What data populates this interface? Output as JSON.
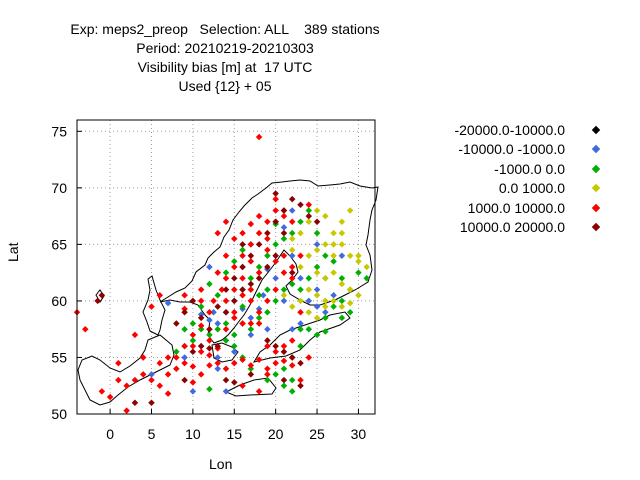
{
  "title_lines": [
    "Exp: meps2_preop   Selection: ALL    389 stations",
    "Period: 20210219-20210303",
    "Visibility bias [m] at  17 UTC",
    "Used {12} + 05"
  ],
  "chart_data": {
    "type": "scatter",
    "xlabel": "Lon",
    "ylabel": "Lat",
    "xlim": [
      -4,
      32
    ],
    "ylim": [
      50,
      76
    ],
    "xticks": [
      0,
      5,
      10,
      15,
      20,
      25,
      30
    ],
    "yticks": [
      50,
      55,
      60,
      65,
      70,
      75
    ],
    "grid": true,
    "legend_position": "right",
    "series": [
      {
        "name": "-20000.0-10000.0",
        "color": "#000000",
        "points": []
      },
      {
        "name": "-10000.0 -1000.0",
        "color": "#4169e1",
        "points": [
          [
            7,
            59.8
          ],
          [
            11,
            58.8
          ],
          [
            12,
            58.3
          ],
          [
            12.5,
            59
          ],
          [
            13,
            58
          ],
          [
            14,
            59
          ],
          [
            15,
            60
          ],
          [
            16,
            59.3
          ],
          [
            17,
            58.5
          ],
          [
            18,
            59.3
          ],
          [
            18.5,
            60.5
          ],
          [
            20,
            62
          ],
          [
            21,
            60
          ],
          [
            22,
            64
          ],
          [
            23,
            62
          ],
          [
            24,
            60
          ],
          [
            25,
            61
          ],
          [
            26,
            62
          ],
          [
            27,
            60.5
          ],
          [
            25,
            59.5
          ],
          [
            23,
            58
          ],
          [
            22,
            57.5
          ],
          [
            19,
            57.5
          ],
          [
            17,
            57
          ],
          [
            15,
            55.5
          ],
          [
            13,
            55
          ],
          [
            11,
            56
          ],
          [
            9,
            55
          ],
          [
            5,
            53.5
          ],
          [
            22,
            68
          ],
          [
            20,
            67
          ],
          [
            25,
            65
          ],
          [
            26,
            59
          ],
          [
            14,
            52
          ],
          [
            10,
            52
          ],
          [
            13,
            54
          ],
          [
            19,
            62.8
          ],
          [
            16,
            63
          ],
          [
            21,
            66.5
          ],
          [
            28,
            64
          ],
          [
            17,
            65
          ],
          [
            12,
            63
          ]
        ]
      },
      {
        "name": "-1000.0 0.0",
        "color": "#00b000",
        "points": [
          [
            9,
            57.5
          ],
          [
            10,
            58
          ],
          [
            11,
            57.5
          ],
          [
            12,
            57
          ],
          [
            13,
            57.5
          ],
          [
            14,
            58
          ],
          [
            15,
            57
          ],
          [
            16,
            58
          ],
          [
            17,
            57.5
          ],
          [
            18,
            58.5
          ],
          [
            19,
            59
          ],
          [
            20,
            60
          ],
          [
            21,
            61
          ],
          [
            22,
            61.5
          ],
          [
            23,
            61
          ],
          [
            24,
            62
          ],
          [
            25,
            63
          ],
          [
            26,
            64
          ],
          [
            27,
            63.5
          ],
          [
            28,
            62
          ],
          [
            29,
            61
          ],
          [
            30,
            62.5
          ],
          [
            31,
            62
          ],
          [
            26,
            58.5
          ],
          [
            27,
            59.5
          ],
          [
            28,
            60
          ],
          [
            29,
            59
          ],
          [
            24,
            57.5
          ],
          [
            25,
            57
          ],
          [
            23,
            56
          ],
          [
            22,
            55
          ],
          [
            21,
            54
          ],
          [
            22,
            53
          ],
          [
            21,
            52.5
          ],
          [
            19,
            53
          ],
          [
            17,
            54
          ],
          [
            16,
            55
          ],
          [
            15,
            56
          ],
          [
            14,
            56.5
          ],
          [
            16,
            61
          ],
          [
            17,
            62
          ],
          [
            18,
            63
          ],
          [
            19,
            64
          ],
          [
            20,
            65
          ],
          [
            21,
            65.5
          ],
          [
            22,
            66
          ],
          [
            23,
            67
          ],
          [
            24,
            68
          ],
          [
            25,
            66
          ],
          [
            20,
            66.8
          ],
          [
            19,
            61
          ],
          [
            18,
            60.5
          ],
          [
            16,
            59.5
          ],
          [
            13,
            60.5
          ],
          [
            12,
            61.5
          ],
          [
            11,
            59.5
          ],
          [
            10,
            56.5
          ],
          [
            9,
            56
          ],
          [
            8,
            55.5
          ],
          [
            15,
            63.5
          ],
          [
            16,
            64.5
          ],
          [
            14,
            62.5
          ],
          [
            12,
            52.2
          ],
          [
            22,
            52
          ],
          [
            20,
            53.5
          ],
          [
            23,
            57.5
          ],
          [
            26,
            57.3
          ],
          [
            28,
            58.5
          ]
        ]
      },
      {
        "name": "0.0 1000.0",
        "color": "#c8c800",
        "points": [
          [
            24,
            64
          ],
          [
            25,
            64.5
          ],
          [
            26,
            65
          ],
          [
            27,
            64
          ],
          [
            28,
            65
          ],
          [
            29,
            64
          ],
          [
            30,
            63.5
          ],
          [
            31,
            63
          ],
          [
            27,
            66
          ],
          [
            28,
            67
          ],
          [
            26,
            67.5
          ],
          [
            25,
            68
          ],
          [
            24,
            67
          ],
          [
            23,
            66
          ],
          [
            22,
            65.5
          ],
          [
            26,
            62
          ],
          [
            27,
            62.5
          ],
          [
            28,
            61.5
          ],
          [
            29,
            61
          ],
          [
            30,
            60.5
          ],
          [
            26,
            60
          ],
          [
            27,
            60
          ],
          [
            28,
            59.5
          ],
          [
            29,
            59.8
          ],
          [
            25,
            60.5
          ],
          [
            24,
            61
          ],
          [
            23,
            60
          ],
          [
            24,
            59
          ],
          [
            25,
            58.5
          ],
          [
            21,
            60.5
          ],
          [
            22,
            59.5
          ],
          [
            29,
            68
          ],
          [
            28,
            66
          ],
          [
            27,
            65
          ],
          [
            30,
            64
          ],
          [
            25,
            62.5
          ],
          [
            23,
            63
          ],
          [
            22,
            64.5
          ],
          [
            26,
            59.5
          ]
        ]
      },
      {
        "name": "1000.0 10000.0",
        "color": "#ff0000",
        "points": [
          [
            -4,
            59
          ],
          [
            -1,
            52
          ],
          [
            0,
            51.5
          ],
          [
            1,
            53
          ],
          [
            2,
            52.5
          ],
          [
            3,
            53
          ],
          [
            4,
            53.5
          ],
          [
            5,
            53
          ],
          [
            6,
            52.5
          ],
          [
            7,
            53.5
          ],
          [
            8,
            54
          ],
          [
            9,
            54.5
          ],
          [
            10,
            54.2
          ],
          [
            11,
            53.5
          ],
          [
            12,
            54.3
          ],
          [
            13,
            54.5
          ],
          [
            14,
            54
          ],
          [
            15,
            54.5
          ],
          [
            16,
            54.8
          ],
          [
            17,
            54.3
          ],
          [
            18,
            54.8
          ],
          [
            19,
            54
          ],
          [
            20,
            54.5
          ],
          [
            21,
            54.7
          ],
          [
            22,
            54.3
          ],
          [
            8,
            55
          ],
          [
            9,
            56
          ],
          [
            10,
            56
          ],
          [
            11,
            55.5
          ],
          [
            12,
            55.2
          ],
          [
            13,
            55.8
          ],
          [
            10,
            57
          ],
          [
            11,
            57.8
          ],
          [
            12,
            59
          ],
          [
            12.5,
            60
          ],
          [
            13.5,
            61
          ],
          [
            14,
            62
          ],
          [
            15,
            63
          ],
          [
            16,
            64
          ],
          [
            17,
            65
          ],
          [
            18,
            66
          ],
          [
            19,
            67
          ],
          [
            20,
            68
          ],
          [
            21,
            67.5
          ],
          [
            19,
            64.5
          ],
          [
            18,
            62.5
          ],
          [
            17,
            61
          ],
          [
            16,
            60.5
          ],
          [
            15,
            59
          ],
          [
            14,
            60
          ],
          [
            13,
            62.5
          ],
          [
            14,
            64
          ],
          [
            15,
            65.5
          ],
          [
            16,
            66
          ],
          [
            17,
            66.8
          ],
          [
            18,
            67.5
          ],
          [
            20,
            63.5
          ],
          [
            21,
            62.5
          ],
          [
            22,
            63
          ],
          [
            19,
            65.5
          ],
          [
            15,
            61
          ],
          [
            18,
            59
          ],
          [
            17,
            58
          ],
          [
            19,
            56
          ],
          [
            20,
            55.5
          ],
          [
            21,
            56
          ],
          [
            22,
            56.5
          ],
          [
            23,
            59
          ],
          [
            23,
            64
          ],
          [
            22,
            62
          ],
          [
            24,
            68.5
          ],
          [
            20,
            69
          ],
          [
            21,
            68
          ],
          [
            22,
            67
          ],
          [
            18,
            74.5
          ],
          [
            11,
            60
          ],
          [
            9,
            60.5
          ],
          [
            6,
            60.5
          ],
          [
            5,
            59.5
          ],
          [
            16,
            58
          ],
          [
            17,
            60
          ],
          [
            14,
            57.5
          ],
          [
            15,
            58.5
          ],
          [
            12,
            56.5
          ],
          [
            24,
            55
          ],
          [
            23,
            53
          ],
          [
            18,
            52
          ],
          [
            19,
            53.5
          ],
          [
            7,
            51.8
          ],
          [
            2,
            50.3
          ],
          [
            9,
            59.3
          ],
          [
            11,
            61
          ],
          [
            13,
            66
          ],
          [
            14,
            67
          ],
          [
            16,
            62
          ],
          [
            17,
            63.5
          ],
          [
            20,
            61
          ],
          [
            21,
            64
          ],
          [
            19,
            60
          ],
          [
            18,
            58
          ],
          [
            16,
            52.5
          ],
          [
            10,
            52.8
          ],
          [
            7,
            55
          ],
          [
            4,
            55
          ],
          [
            6,
            54.5
          ],
          [
            1,
            54.5
          ],
          [
            -3,
            57.5
          ],
          [
            3,
            57
          ]
        ]
      },
      {
        "name": "10000.0 20000.0",
        "color": "#8b0000",
        "points": [
          [
            -1,
            60.5
          ],
          [
            -1.5,
            60
          ],
          [
            8,
            58
          ],
          [
            9,
            59
          ],
          [
            10,
            60
          ],
          [
            11,
            58.5
          ],
          [
            12,
            57.5
          ],
          [
            13,
            59.5
          ],
          [
            14,
            61
          ],
          [
            15,
            62
          ],
          [
            16,
            63
          ],
          [
            17,
            64
          ],
          [
            18,
            65
          ],
          [
            19,
            66
          ],
          [
            20,
            67
          ],
          [
            21,
            68
          ],
          [
            22,
            69
          ],
          [
            23,
            68.5
          ],
          [
            24,
            67.5
          ],
          [
            25,
            67
          ],
          [
            20,
            64
          ],
          [
            19,
            63
          ],
          [
            18,
            62
          ],
          [
            17,
            61.5
          ],
          [
            16,
            61
          ],
          [
            15,
            60
          ],
          [
            14,
            59
          ],
          [
            13,
            56
          ],
          [
            12,
            55.8
          ],
          [
            11,
            56
          ],
          [
            10,
            55.5
          ],
          [
            19,
            56.5
          ],
          [
            20,
            56
          ],
          [
            21,
            55.5
          ],
          [
            22,
            55
          ],
          [
            23,
            54.5
          ],
          [
            9,
            53
          ],
          [
            3,
            51
          ],
          [
            5,
            51
          ],
          [
            14,
            53
          ],
          [
            15,
            52.8
          ],
          [
            17,
            53.5
          ],
          [
            21,
            53
          ],
          [
            23,
            52.5
          ],
          [
            16,
            65
          ],
          [
            22,
            62.5
          ],
          [
            21,
            66
          ],
          [
            20,
            69.5
          ]
        ]
      }
    ]
  }
}
